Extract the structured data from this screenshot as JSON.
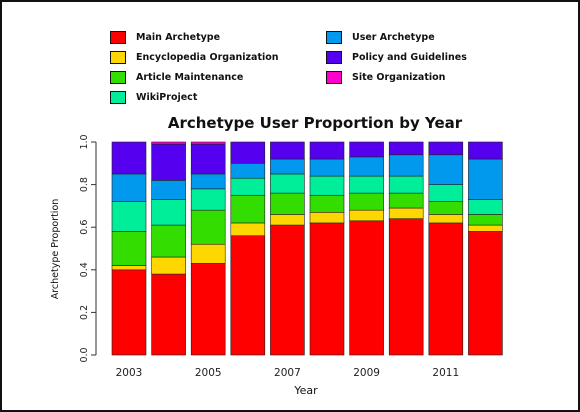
{
  "chart_data": {
    "type": "bar",
    "stacked": true,
    "normalized": true,
    "title": "Archetype User Proportion by Year",
    "xlabel": "Year",
    "ylabel": "Archetype Proportion",
    "ylim": [
      0,
      1
    ],
    "yticks": [
      "0.0",
      "0.2",
      "0.4",
      "0.6",
      "0.8",
      "1.0"
    ],
    "ytick_values": [
      0,
      0.2,
      0.4,
      0.6,
      0.8,
      1.0
    ],
    "categories": [
      "2003",
      "2004",
      "2005",
      "2006",
      "2007",
      "2008",
      "2009",
      "2010",
      "2011",
      "2012"
    ],
    "xtick_labels": [
      "2003",
      "",
      "2005",
      "",
      "2007",
      "",
      "2009",
      "",
      "2011",
      ""
    ],
    "grid": false,
    "legend_placement": "top",
    "series": [
      {
        "name": "Main Archetype",
        "color": "#ff0000",
        "values": [
          0.4,
          0.38,
          0.43,
          0.56,
          0.61,
          0.62,
          0.63,
          0.64,
          0.62,
          0.58
        ]
      },
      {
        "name": "Encyclopedia Organization",
        "color": "#ffd700",
        "values": [
          0.02,
          0.08,
          0.09,
          0.06,
          0.05,
          0.05,
          0.05,
          0.05,
          0.04,
          0.03
        ]
      },
      {
        "name": "Article Maintenance",
        "color": "#33dd00",
        "values": [
          0.16,
          0.15,
          0.16,
          0.13,
          0.1,
          0.08,
          0.08,
          0.07,
          0.06,
          0.05
        ]
      },
      {
        "name": "WikiProject",
        "color": "#00ee99",
        "values": [
          0.14,
          0.12,
          0.1,
          0.08,
          0.09,
          0.09,
          0.08,
          0.08,
          0.08,
          0.07
        ]
      },
      {
        "name": "User Archetype",
        "color": "#0099ee",
        "values": [
          0.13,
          0.09,
          0.07,
          0.07,
          0.07,
          0.08,
          0.09,
          0.1,
          0.14,
          0.19
        ]
      },
      {
        "name": "Policy and Guidelines",
        "color": "#5500ee",
        "values": [
          0.15,
          0.17,
          0.14,
          0.1,
          0.08,
          0.08,
          0.07,
          0.06,
          0.06,
          0.08
        ]
      },
      {
        "name": "Site Organization",
        "color": "#ff00cc",
        "values": [
          0.0,
          0.01,
          0.01,
          0.0,
          0.0,
          0.0,
          0.0,
          0.0,
          0.0,
          0.0
        ]
      }
    ]
  }
}
